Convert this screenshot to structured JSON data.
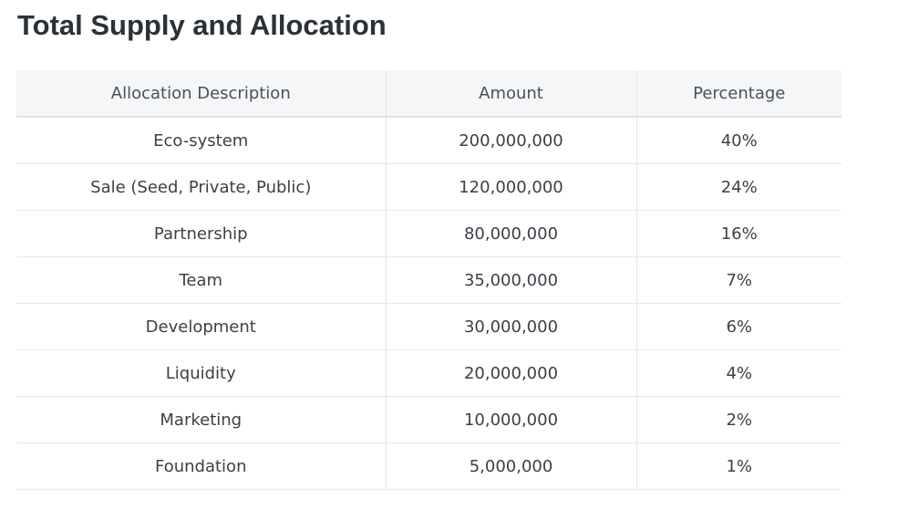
{
  "title": "Total Supply and Allocation",
  "table": {
    "headers": [
      "Allocation Description",
      "Amount",
      "Percentage"
    ],
    "rows": [
      [
        "Eco-system",
        "200,000,000",
        "40%"
      ],
      [
        "Sale (Seed, Private, Public)",
        "120,000,000",
        "24%"
      ],
      [
        "Partnership",
        "80,000,000",
        "16%"
      ],
      [
        "Team",
        "35,000,000",
        "7%"
      ],
      [
        "Development",
        "30,000,000",
        "6%"
      ],
      [
        "Liquidity",
        "20,000,000",
        "4%"
      ],
      [
        "Marketing",
        "10,000,000",
        "2%"
      ],
      [
        "Foundation",
        "5,000,000",
        "1%"
      ]
    ]
  }
}
